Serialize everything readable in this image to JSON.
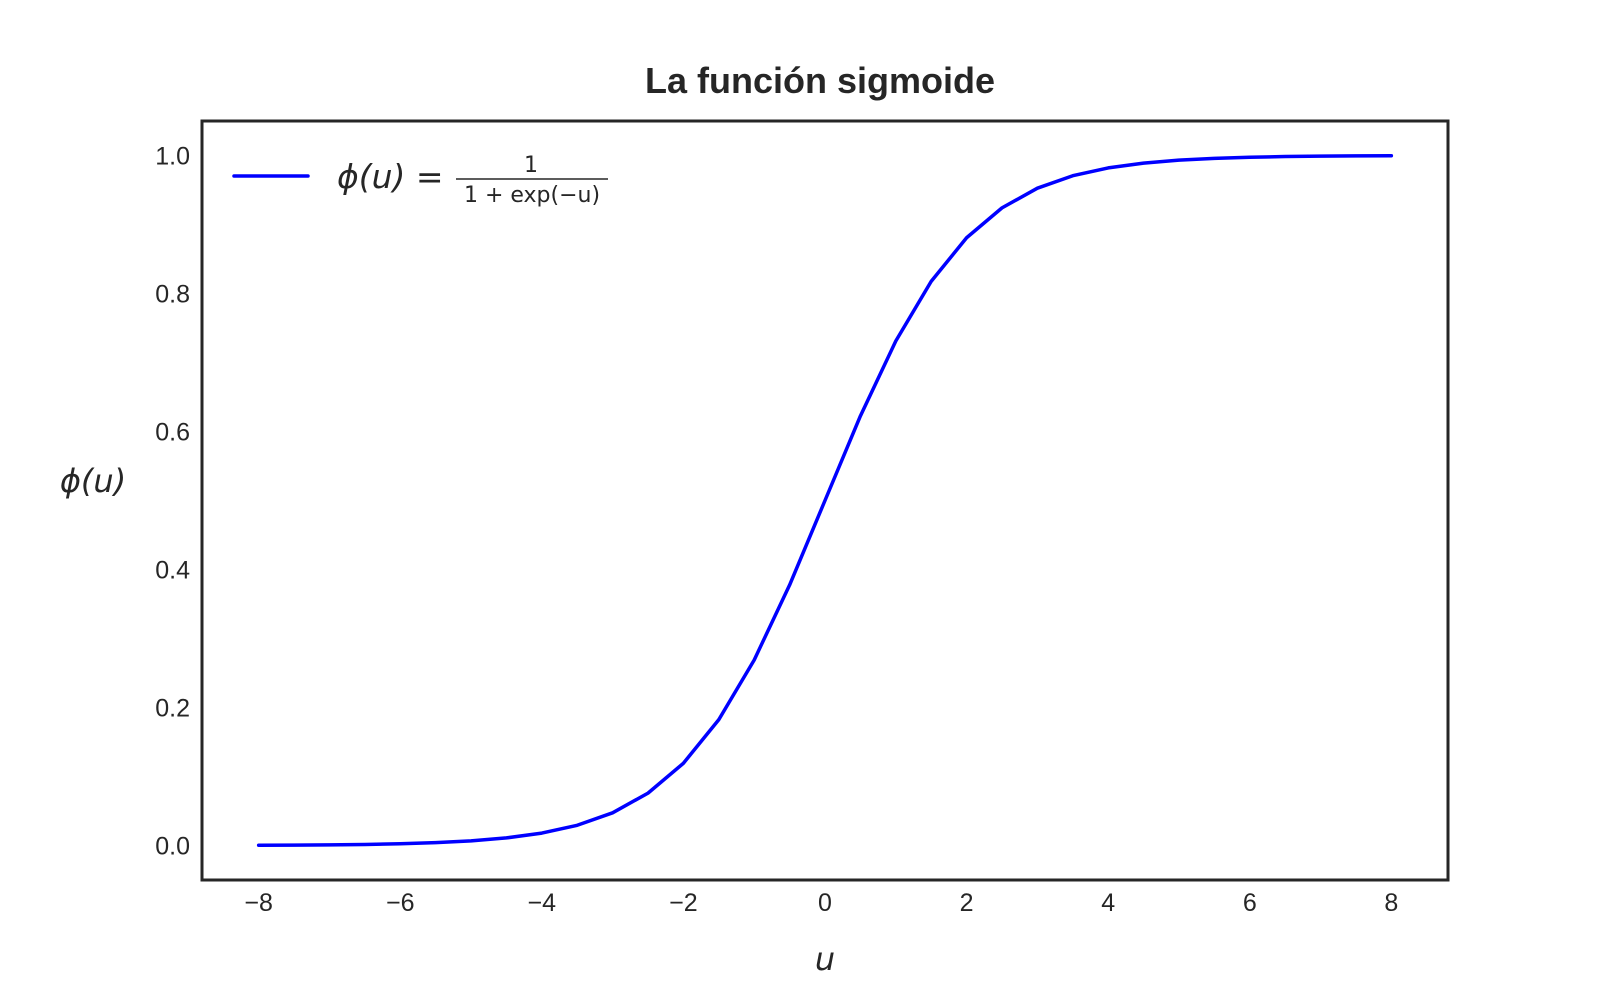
{
  "chart_data": {
    "type": "line",
    "title": "La función sigmoide",
    "xlabel": "u",
    "ylabel": "ϕ(u)",
    "xlim": [
      -8.8,
      8.8
    ],
    "ylim": [
      -0.05,
      1.05
    ],
    "grid": false,
    "legend_position": "top-left",
    "xticks": [
      -8,
      -6,
      -4,
      -2,
      0,
      2,
      4,
      6,
      8
    ],
    "xtick_labels": [
      "−8",
      "−6",
      "−4",
      "−2",
      "0",
      "2",
      "4",
      "6",
      "8"
    ],
    "yticks": [
      0.0,
      0.2,
      0.4,
      0.6,
      0.8,
      1.0
    ],
    "ytick_labels": [
      "0.0",
      "0.2",
      "0.4",
      "0.6",
      "0.8",
      "1.0"
    ],
    "series": [
      {
        "name": "ϕ(u) = 1 / (1 + exp(−u))",
        "legend_lhs": "ϕ(u) =",
        "legend_num": "1",
        "legend_den": "1 + exp(−u)",
        "color": "#0000ff",
        "x": [
          -8,
          -7.5,
          -7,
          -6.5,
          -6,
          -5.5,
          -5,
          -4.5,
          -4,
          -3.5,
          -3,
          -2.5,
          -2,
          -1.5,
          -1,
          -0.5,
          0,
          0.5,
          1,
          1.5,
          2,
          2.5,
          3,
          3.5,
          4,
          4.5,
          5,
          5.5,
          6,
          6.5,
          7,
          7.5,
          8
        ],
        "y": [
          0.0003,
          0.0006,
          0.0009,
          0.0015,
          0.0025,
          0.0041,
          0.0067,
          0.011,
          0.018,
          0.0293,
          0.0474,
          0.0759,
          0.1192,
          0.1824,
          0.2689,
          0.3775,
          0.5,
          0.6225,
          0.7311,
          0.8176,
          0.8808,
          0.9241,
          0.9526,
          0.9707,
          0.982,
          0.989,
          0.9933,
          0.9959,
          0.9975,
          0.9985,
          0.9991,
          0.9994,
          0.9997
        ]
      }
    ]
  }
}
